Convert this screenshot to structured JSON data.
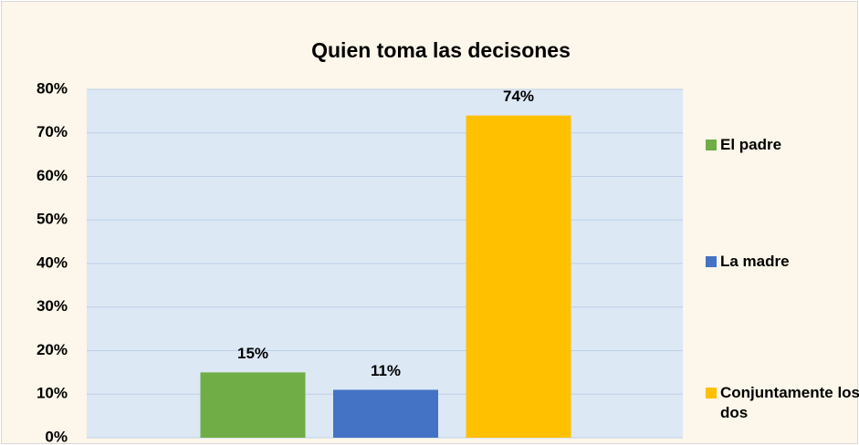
{
  "chart_data": {
    "type": "bar",
    "title": "Quien toma las decisones",
    "series": [
      {
        "name": "El padre",
        "color": "#70ad47",
        "values": [
          15
        ],
        "value_labels": [
          "15%"
        ]
      },
      {
        "name": "La madre",
        "color": "#4472c4",
        "values": [
          11
        ],
        "value_labels": [
          "11%"
        ]
      },
      {
        "name": "Conjuntamente los dos",
        "color": "#ffc000",
        "values": [
          74
        ],
        "value_labels": [
          "74%"
        ]
      }
    ],
    "ylim": [
      0,
      80
    ],
    "yticks": [
      {
        "value": 0,
        "label": "0%"
      },
      {
        "value": 10,
        "label": "10%"
      },
      {
        "value": 20,
        "label": "20%"
      },
      {
        "value": 30,
        "label": "30%"
      },
      {
        "value": 40,
        "label": "40%"
      },
      {
        "value": 50,
        "label": "50%"
      },
      {
        "value": 60,
        "label": "60%"
      },
      {
        "value": 70,
        "label": "70%"
      },
      {
        "value": 80,
        "label": "80%"
      }
    ],
    "grid": true,
    "legend": "right"
  }
}
